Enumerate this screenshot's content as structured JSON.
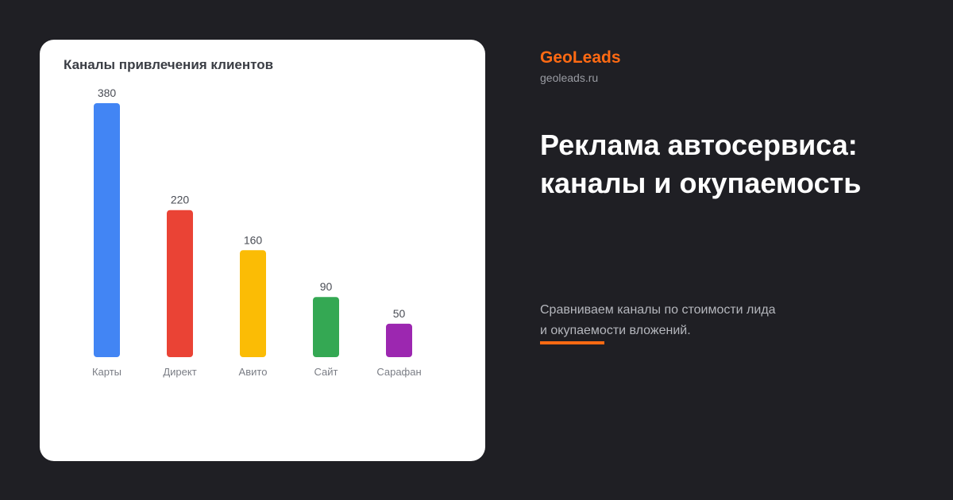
{
  "brand": {
    "name": "GeoLeads",
    "domain": "geoleads.ru",
    "accent_color": "#ff6a13"
  },
  "headline": "Реклама автосервиса: каналы и окупаемость",
  "subtitle": "Сравниваем каналы по стоимости лида и окупаемости вложений.",
  "chart_data": {
    "type": "bar",
    "title": "Каналы привлечения клиентов",
    "xlabel": "",
    "ylabel": "",
    "categories": [
      "Карты",
      "Директ",
      "Авито",
      "Сайт",
      "Сарафан"
    ],
    "values": [
      380,
      220,
      160,
      90,
      50
    ],
    "colors": [
      "#4285f4",
      "#ea4335",
      "#fbbc05",
      "#34a853",
      "#9c27b0"
    ],
    "ylim": [
      0,
      380
    ],
    "grid": false,
    "legend": "none",
    "data_labels": true
  }
}
